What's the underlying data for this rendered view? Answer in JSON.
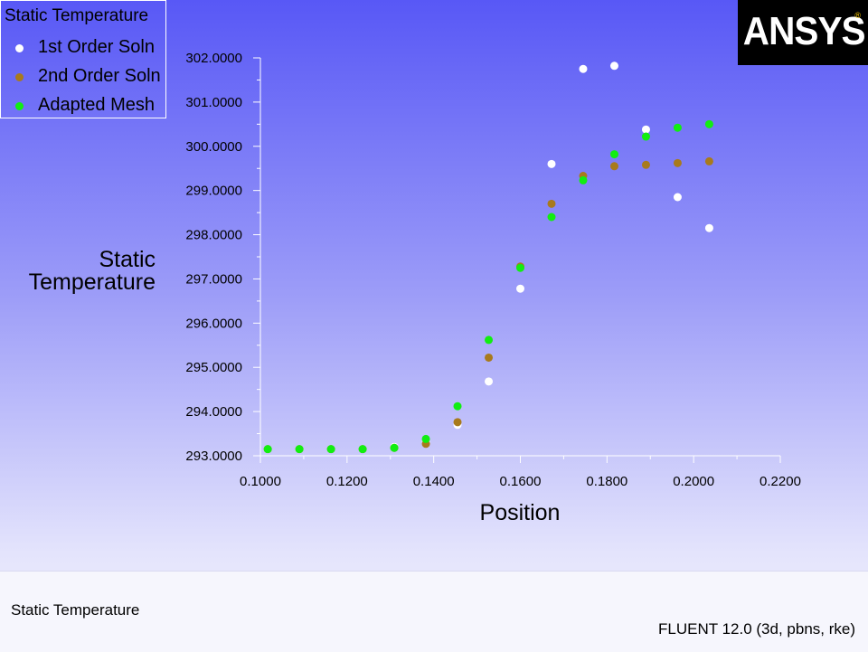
{
  "legend": {
    "title": "Static Temperature",
    "items": [
      {
        "label": "1st Order Soln",
        "color": "#ffffff"
      },
      {
        "label": "2nd Order Soln",
        "color": "#a87a1c"
      },
      {
        "label": "Adapted Mesh",
        "color": "#11ee11"
      }
    ]
  },
  "logo": {
    "text": "ANSYS"
  },
  "footer": {
    "left": "Static Temperature",
    "right": "FLUENT 12.0 (3d, pbns, rke)"
  },
  "chart_data": {
    "type": "scatter",
    "xlabel": "Position",
    "ylabel_lines": [
      "Static",
      "Temperature"
    ],
    "xlim": [
      0.1,
      0.22
    ],
    "ylim": [
      293.0,
      302.0
    ],
    "xticks": [
      0.1,
      0.12,
      0.14,
      0.16,
      0.18,
      0.2,
      0.22
    ],
    "xtick_labels": [
      "0.1000",
      "0.1200",
      "0.1400",
      "0.1600",
      "0.1800",
      "0.2000",
      "0.2200"
    ],
    "yticks": [
      293,
      294,
      295,
      296,
      297,
      298,
      299,
      300,
      301,
      302
    ],
    "ytick_labels": [
      "293.0000",
      "294.0000",
      "295.0000",
      "296.0000",
      "297.0000",
      "298.0000",
      "299.0000",
      "300.0000",
      "301.0000",
      "302.0000"
    ],
    "grid": false,
    "legend_position": "top-left",
    "series": [
      {
        "name": "1st Order Soln",
        "color": "#ffffff",
        "points": [
          [
            0.1017,
            293.15
          ],
          [
            0.109,
            293.15
          ],
          [
            0.1163,
            293.15
          ],
          [
            0.1236,
            293.15
          ],
          [
            0.1309,
            293.2
          ],
          [
            0.1382,
            293.3
          ],
          [
            0.1455,
            293.7
          ],
          [
            0.1527,
            294.68
          ],
          [
            0.16,
            296.78
          ],
          [
            0.1672,
            299.6
          ],
          [
            0.1745,
            301.75
          ],
          [
            0.1817,
            301.82
          ],
          [
            0.189,
            300.38
          ],
          [
            0.1963,
            298.85
          ],
          [
            0.2036,
            298.15
          ]
        ]
      },
      {
        "name": "2nd Order Soln",
        "color": "#a87a1c",
        "points": [
          [
            0.1017,
            293.15
          ],
          [
            0.109,
            293.15
          ],
          [
            0.1163,
            293.15
          ],
          [
            0.1236,
            293.15
          ],
          [
            0.1309,
            293.18
          ],
          [
            0.1382,
            293.27
          ],
          [
            0.1455,
            293.76
          ],
          [
            0.1527,
            295.22
          ],
          [
            0.16,
            297.28
          ],
          [
            0.1672,
            298.7
          ],
          [
            0.1745,
            299.33
          ],
          [
            0.1817,
            299.55
          ],
          [
            0.189,
            299.58
          ],
          [
            0.1963,
            299.62
          ],
          [
            0.2036,
            299.66
          ]
        ]
      },
      {
        "name": "Adapted Mesh",
        "color": "#11ee11",
        "points": [
          [
            0.1017,
            293.15
          ],
          [
            0.109,
            293.15
          ],
          [
            0.1163,
            293.15
          ],
          [
            0.1236,
            293.15
          ],
          [
            0.1309,
            293.18
          ],
          [
            0.1382,
            293.38
          ],
          [
            0.1455,
            294.12
          ],
          [
            0.1527,
            295.62
          ],
          [
            0.16,
            297.25
          ],
          [
            0.1672,
            298.4
          ],
          [
            0.1745,
            299.23
          ],
          [
            0.1817,
            299.82
          ],
          [
            0.189,
            300.22
          ],
          [
            0.1963,
            300.42
          ],
          [
            0.2036,
            300.5
          ]
        ]
      }
    ]
  }
}
